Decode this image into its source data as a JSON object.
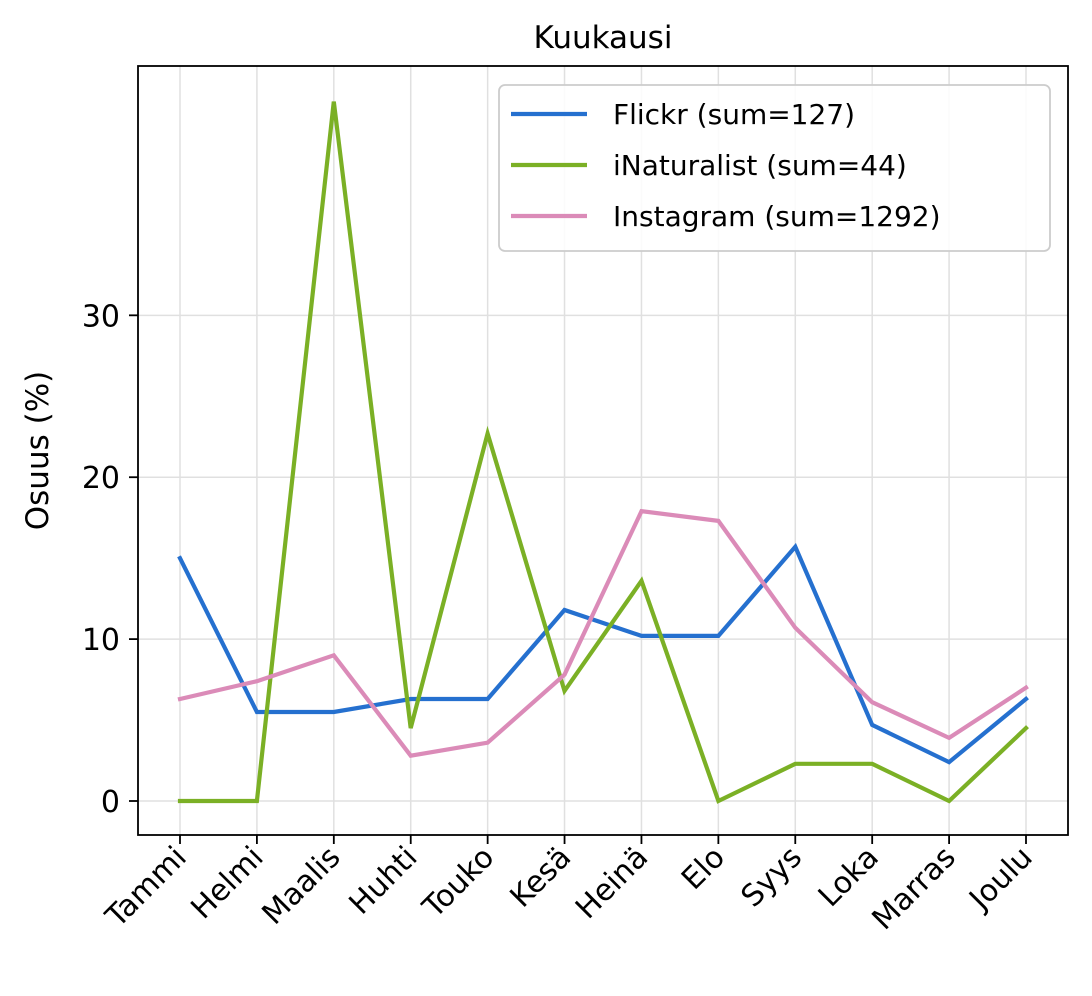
{
  "chart_data": {
    "type": "line",
    "title": "Kuukausi",
    "xlabel": "",
    "ylabel": "Osuus (%)",
    "categories": [
      "Tammi",
      "Helmi",
      "Maalis",
      "Huhti",
      "Touko",
      "Kesä",
      "Heinä",
      "Elo",
      "Syys",
      "Loka",
      "Marras",
      "Joulu"
    ],
    "yticks": [
      0,
      10,
      20,
      30
    ],
    "ylim": [
      -2.1,
      45.4
    ],
    "grid": true,
    "legend_position": "top-right",
    "series": [
      {
        "name": "Flickr (sum=127)",
        "color": "#2570cf",
        "values": [
          15.0,
          5.5,
          5.5,
          6.3,
          6.3,
          11.8,
          10.2,
          10.2,
          15.7,
          4.7,
          2.4,
          6.3
        ]
      },
      {
        "name": "iNaturalist (sum=44)",
        "color": "#7bb025",
        "values": [
          0.0,
          0.0,
          43.2,
          4.5,
          22.7,
          6.8,
          13.6,
          0.0,
          2.3,
          2.3,
          0.0,
          4.5
        ]
      },
      {
        "name": "Instagram (sum=1292)",
        "color": "#db8bb8",
        "values": [
          6.3,
          7.4,
          9.0,
          2.8,
          3.6,
          7.8,
          17.9,
          17.3,
          10.7,
          6.1,
          3.9,
          7.0
        ]
      }
    ]
  }
}
